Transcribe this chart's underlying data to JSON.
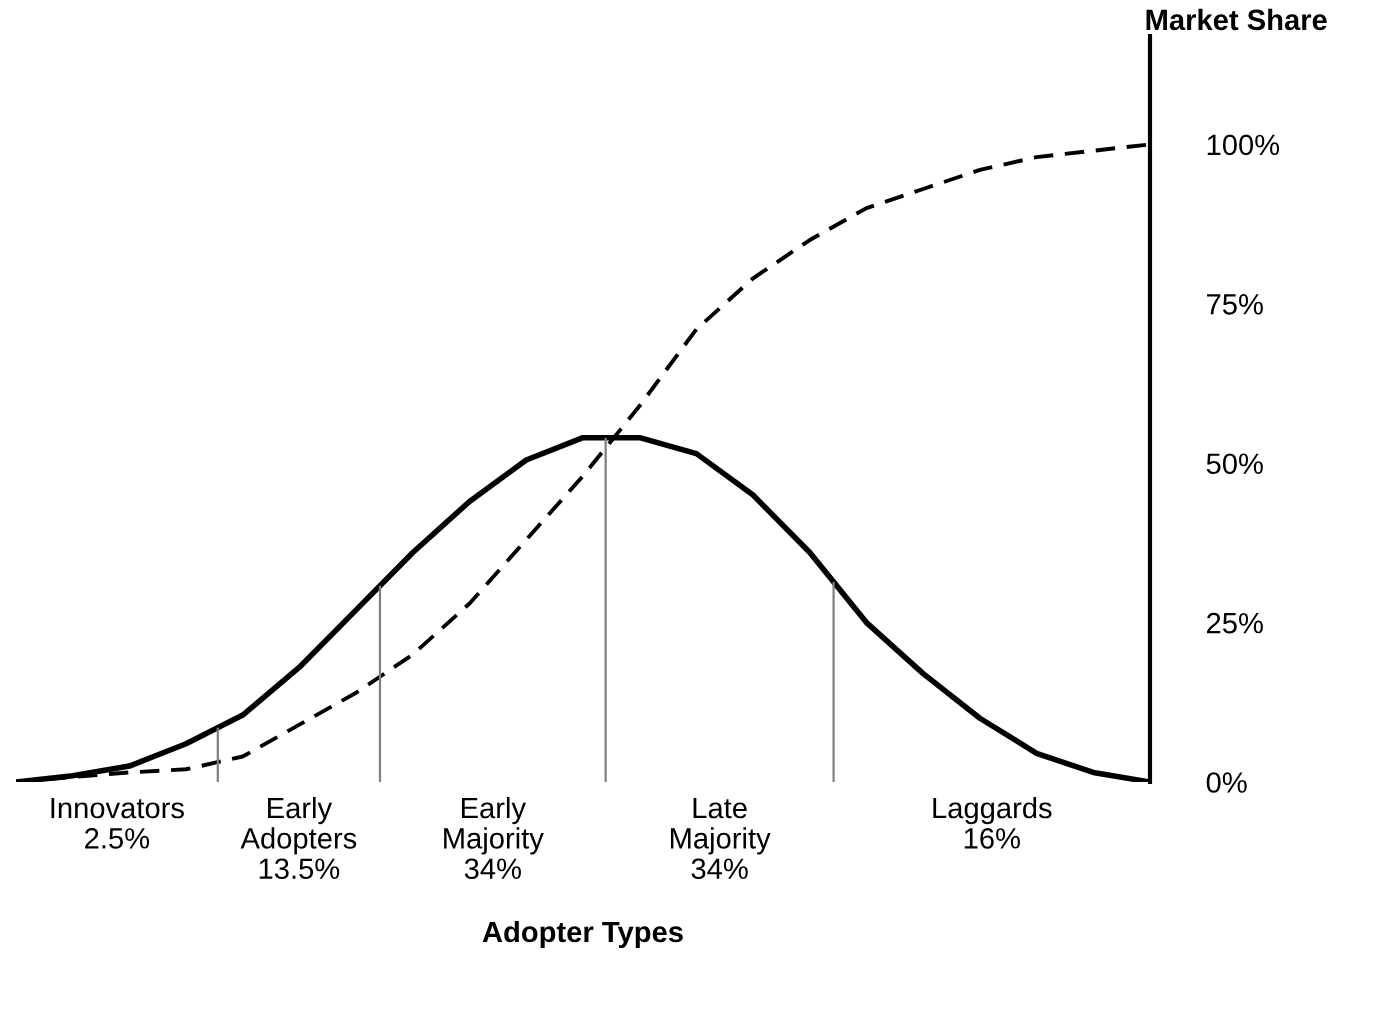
{
  "chart_data": {
    "type": "line",
    "xlabel": "Adopter Types",
    "ylabel": "Market Share",
    "categories": [
      null,
      null,
      null,
      null,
      null,
      null,
      null,
      null,
      null,
      null,
      null,
      null,
      null,
      null,
      null,
      null,
      null,
      null,
      null,
      null,
      null
    ],
    "ylim": [
      0,
      117
    ],
    "yticks": [
      {
        "value": 0,
        "label": "0%"
      },
      {
        "value": 25,
        "label": "25%"
      },
      {
        "value": 50,
        "label": "50%"
      },
      {
        "value": 75,
        "label": "75%"
      },
      {
        "value": 100,
        "label": "100%"
      }
    ],
    "tick_labels": "y",
    "grid": false,
    "series": [
      {
        "color": "#000000",
        "line_style": "solid",
        "values": [
          0,
          1,
          2.5,
          6,
          10.5,
          18,
          27,
          36,
          44,
          50.5,
          54,
          54,
          51.5,
          45,
          36,
          25,
          17,
          10,
          4.5,
          1.5,
          0
        ]
      },
      {
        "color": "#000000",
        "line_style": "dashed",
        "values": [
          0,
          0.8,
          1.5,
          2,
          4,
          9,
          14,
          20,
          28,
          38,
          48,
          59,
          71,
          79,
          85,
          90,
          93,
          96,
          98,
          99,
          100
        ]
      }
    ],
    "annotations": [
      "Innovators\n2.5%",
      "Early\nAdopters\n13.5%",
      "Early\nMajority\n34%",
      "Late\nMajority\n34%",
      "Laggards\n16%"
    ]
  }
}
